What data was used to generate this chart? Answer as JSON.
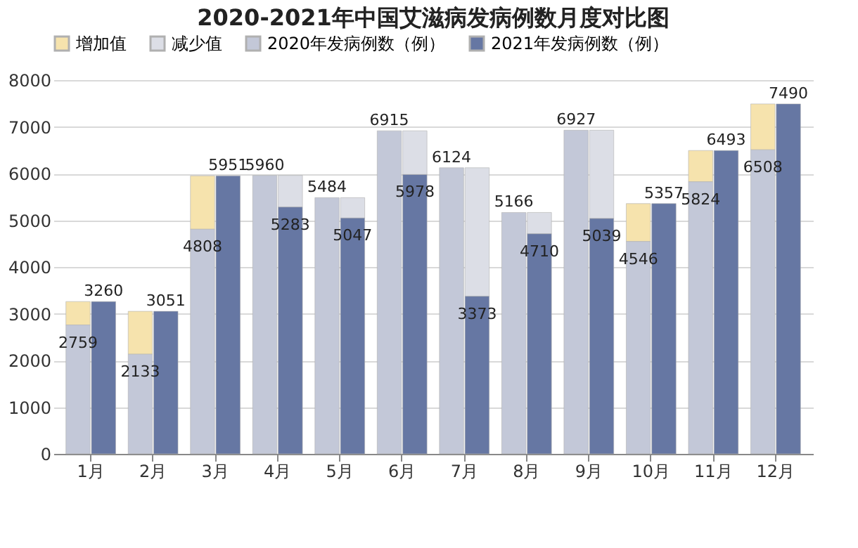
{
  "chart_data": {
    "type": "bar",
    "title": "2020-2021年中国艾滋病发病例数月度对比图",
    "categories": [
      "1月",
      "2月",
      "3月",
      "4月",
      "5月",
      "6月",
      "7月",
      "8月",
      "9月",
      "10月",
      "11月",
      "12月"
    ],
    "series": [
      {
        "name": "增加值",
        "color": "#f6e3ad",
        "values": [
          501,
          918,
          1143,
          null,
          null,
          null,
          null,
          null,
          null,
          811,
          669,
          982
        ],
        "base": [
          2759,
          2133,
          4808,
          null,
          null,
          null,
          null,
          null,
          null,
          4546,
          5824,
          6508
        ]
      },
      {
        "name": "减少值",
        "color": "#dcdee6",
        "values": [
          null,
          null,
          null,
          677,
          437,
          937,
          2751,
          456,
          1888,
          null,
          null,
          null
        ],
        "base": [
          null,
          null,
          null,
          5283,
          5047,
          5978,
          3373,
          4710,
          5039,
          null,
          null,
          null
        ]
      },
      {
        "name": "2020年发病例数（例）",
        "color": "#c3c8d8",
        "values": [
          2759,
          2133,
          4808,
          5960,
          5484,
          6915,
          6124,
          5166,
          6927,
          4546,
          5824,
          6508
        ],
        "value_labels": [
          "2759",
          "2133",
          "4808",
          "5960",
          "5484",
          "6915",
          "6124",
          "5166",
          "6927",
          "4546",
          "5824",
          "6508"
        ]
      },
      {
        "name": "2021年发病例数（例）",
        "color": "#6677a3",
        "values": [
          3260,
          3051,
          5951,
          5283,
          5047,
          5978,
          3373,
          4710,
          5039,
          5357,
          6493,
          7490
        ],
        "value_labels": [
          "3260",
          "3051",
          "5951",
          "5283",
          "5047",
          "5978",
          "3373",
          "4710",
          "5039",
          "5357",
          "6493",
          "7490"
        ]
      }
    ],
    "ylim": [
      0,
      8000
    ],
    "yticks": [
      0,
      1000,
      2000,
      3000,
      4000,
      5000,
      6000,
      7000,
      8000
    ],
    "grid": "y",
    "legend": "top"
  }
}
